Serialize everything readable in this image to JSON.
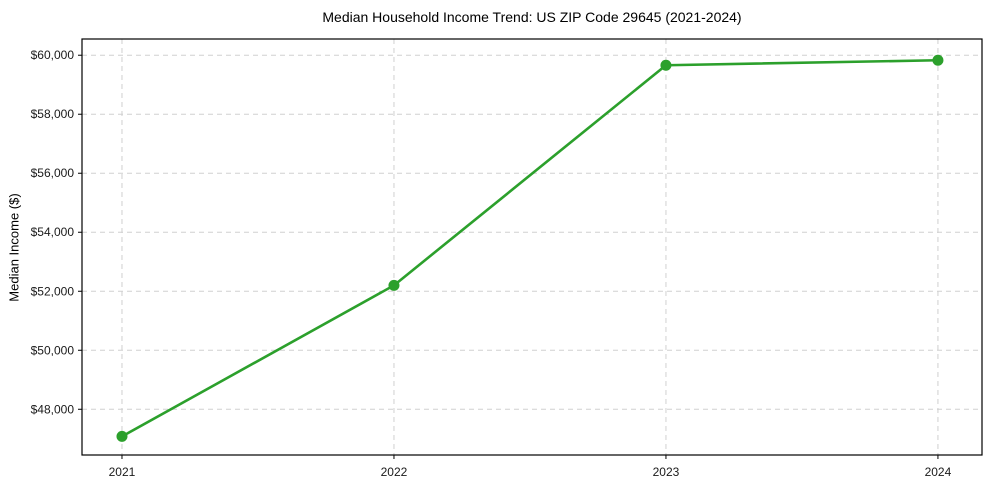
{
  "chart_data": {
    "type": "line",
    "title": "Median Household Income Trend: US ZIP Code 29645 (2021-2024)",
    "xlabel": "",
    "ylabel": "Median Income ($)",
    "x": [
      2021,
      2022,
      2023,
      2024
    ],
    "x_tick_labels": [
      "2021",
      "2022",
      "2023",
      "2024"
    ],
    "series": [
      {
        "name": "Median Household Income",
        "values": [
          47080,
          52200,
          59660,
          59830
        ]
      }
    ],
    "y_ticks": [
      48000,
      50000,
      52000,
      54000,
      56000,
      58000,
      60000
    ],
    "y_tick_labels": [
      "$48,000",
      "$50,000",
      "$52,000",
      "$54,000",
      "$56,000",
      "$58,000",
      "$60,000"
    ],
    "xlim": [
      2020.853,
      2024.162
    ],
    "ylim": [
      46450,
      60550
    ],
    "grid": true,
    "legend": "none",
    "colors": {
      "line": "#2ca02c",
      "marker": "#2ca02c",
      "grid": "#d0d0d0",
      "spine": "#000000",
      "background": "#ffffff"
    },
    "marker": "circle",
    "marker_radius": 5.5,
    "line_width": 2.6
  }
}
